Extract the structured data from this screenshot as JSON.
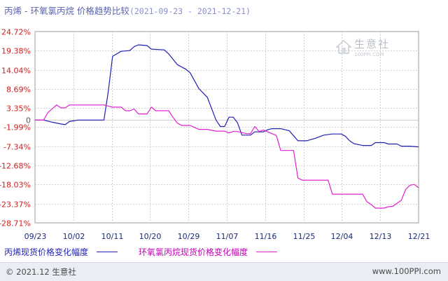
{
  "title": {
    "main": "丙烯 - 环氧氯丙烷 价格趋势比较",
    "range": "(2021-09-23 - 2021-12-21)"
  },
  "watermark": {
    "brand": "生意社",
    "url": "100PPI.COM"
  },
  "footer": {
    "left": "© 2021.12 生意社",
    "right": "www.100PPI.com"
  },
  "colors": {
    "series_a": "#1f1fb0",
    "series_b": "#e020d0",
    "positive_tick": "#cc2020",
    "negative_tick": "#cc2020",
    "grid": "#cfcfcf"
  },
  "chart_data": {
    "type": "line",
    "title": "丙烯 - 环氧氯丙烷 价格趋势比较",
    "x_tick_labels": [
      "09/23",
      "10/02",
      "10/11",
      "10/20",
      "10/29",
      "11/07",
      "11/16",
      "11/25",
      "12/04",
      "12/13",
      "12/21"
    ],
    "x_range": [
      "2021-09-23",
      "2021-12-21"
    ],
    "y_tick_labels": [
      "24.72%",
      "19.38%",
      "14.04%",
      "8.69%",
      "3.35%",
      "0",
      "-1.99%",
      "-7.34%",
      "-12.68%",
      "-18.03%",
      "-23.37%",
      "-28.71%"
    ],
    "y_ticks": [
      24.72,
      19.38,
      14.04,
      8.69,
      3.35,
      0,
      -1.99,
      -7.34,
      -12.68,
      -18.03,
      -23.37,
      -28.71
    ],
    "ylim": [
      -28.71,
      24.72
    ],
    "grid": true,
    "series": [
      {
        "name": "丙烯现货价格变化幅度",
        "points": [
          [
            "2021-09-23",
            0
          ],
          [
            "2021-09-25",
            0
          ],
          [
            "2021-09-27",
            -0.6
          ],
          [
            "2021-09-29",
            -1.1
          ],
          [
            "2021-09-30",
            -1.3
          ],
          [
            "2021-10-01",
            -0.4
          ],
          [
            "2021-10-03",
            0
          ],
          [
            "2021-10-05",
            0
          ],
          [
            "2021-10-07",
            0
          ],
          [
            "2021-10-09",
            0
          ],
          [
            "2021-10-10",
            8
          ],
          [
            "2021-10-11",
            17.8
          ],
          [
            "2021-10-13",
            19.2
          ],
          [
            "2021-10-15",
            19.4
          ],
          [
            "2021-10-16",
            20.5
          ],
          [
            "2021-10-17",
            21
          ],
          [
            "2021-10-19",
            20.8
          ],
          [
            "2021-10-20",
            19.8
          ],
          [
            "2021-10-23",
            19.6
          ],
          [
            "2021-10-24",
            18.5
          ],
          [
            "2021-10-26",
            15.5
          ],
          [
            "2021-10-28",
            14.2
          ],
          [
            "2021-10-29",
            13.2
          ],
          [
            "2021-10-31",
            8.8
          ],
          [
            "2021-11-02",
            6.3
          ],
          [
            "2021-11-04",
            0
          ],
          [
            "2021-11-05",
            -1.8
          ],
          [
            "2021-11-06",
            -1.8
          ],
          [
            "2021-11-07",
            0.8
          ],
          [
            "2021-11-08",
            0.8
          ],
          [
            "2021-11-09",
            -0.8
          ],
          [
            "2021-11-10",
            -4.2
          ],
          [
            "2021-11-12",
            -4.2
          ],
          [
            "2021-11-13",
            -3.3
          ],
          [
            "2021-11-15",
            -3.3
          ],
          [
            "2021-11-16",
            -2.7
          ],
          [
            "2021-11-17",
            -2.4
          ],
          [
            "2021-11-19",
            -2.4
          ],
          [
            "2021-11-21",
            -3
          ],
          [
            "2021-11-23",
            -5.8
          ],
          [
            "2021-11-25",
            -5.8
          ],
          [
            "2021-11-27",
            -5.1
          ],
          [
            "2021-11-29",
            -4.2
          ],
          [
            "2021-12-01",
            -3.9
          ],
          [
            "2021-12-03",
            -3.9
          ],
          [
            "2021-12-04",
            -4.5
          ],
          [
            "2021-12-05",
            -5.8
          ],
          [
            "2021-12-06",
            -6.6
          ],
          [
            "2021-12-08",
            -7.1
          ],
          [
            "2021-12-10",
            -7.1
          ],
          [
            "2021-12-11",
            -6.3
          ],
          [
            "2021-12-13",
            -6.3
          ],
          [
            "2021-12-14",
            -6.7
          ],
          [
            "2021-12-16",
            -6.7
          ],
          [
            "2021-12-17",
            -7.3
          ],
          [
            "2021-12-19",
            -7.3
          ],
          [
            "2021-12-21",
            -7.5
          ]
        ]
      },
      {
        "name": "环氧氯丙烷现货价格变化幅度",
        "points": [
          [
            "2021-09-23",
            0
          ],
          [
            "2021-09-25",
            0
          ],
          [
            "2021-09-26",
            2.1
          ],
          [
            "2021-09-28",
            4.2
          ],
          [
            "2021-09-29",
            3.4
          ],
          [
            "2021-09-30",
            3.4
          ],
          [
            "2021-10-01",
            4.2
          ],
          [
            "2021-10-03",
            4.2
          ],
          [
            "2021-10-05",
            4.2
          ],
          [
            "2021-10-07",
            4.2
          ],
          [
            "2021-10-09",
            4.2
          ],
          [
            "2021-10-11",
            3.6
          ],
          [
            "2021-10-13",
            3.6
          ],
          [
            "2021-10-14",
            2.6
          ],
          [
            "2021-10-15",
            2.6
          ],
          [
            "2021-10-16",
            3.1
          ],
          [
            "2021-10-17",
            1.7
          ],
          [
            "2021-10-19",
            1.7
          ],
          [
            "2021-10-20",
            3.6
          ],
          [
            "2021-10-21",
            2.6
          ],
          [
            "2021-10-23",
            2.6
          ],
          [
            "2021-10-24",
            2.6
          ],
          [
            "2021-10-25",
            0.8
          ],
          [
            "2021-10-26",
            -0.8
          ],
          [
            "2021-10-27",
            -1.5
          ],
          [
            "2021-10-29",
            -1.5
          ],
          [
            "2021-10-31",
            -2.6
          ],
          [
            "2021-11-02",
            -2.6
          ],
          [
            "2021-11-04",
            -3.1
          ],
          [
            "2021-11-06",
            -3.1
          ],
          [
            "2021-11-07",
            -3.6
          ],
          [
            "2021-11-08",
            -3.2
          ],
          [
            "2021-11-09",
            -3.2
          ],
          [
            "2021-11-11",
            -3.8
          ],
          [
            "2021-11-12",
            -3.8
          ],
          [
            "2021-11-13",
            -1.8
          ],
          [
            "2021-11-14",
            -3.2
          ],
          [
            "2021-11-15",
            -2.8
          ],
          [
            "2021-11-16",
            -3.3
          ],
          [
            "2021-11-18",
            -4.3
          ],
          [
            "2021-11-19",
            -8.5
          ],
          [
            "2021-11-20",
            -8.5
          ],
          [
            "2021-11-21",
            -8.5
          ],
          [
            "2021-11-22",
            -8.5
          ],
          [
            "2021-11-23",
            -16.2
          ],
          [
            "2021-11-24",
            -16.8
          ],
          [
            "2021-11-26",
            -16.8
          ],
          [
            "2021-11-28",
            -16.8
          ],
          [
            "2021-11-29",
            -16.8
          ],
          [
            "2021-11-30",
            -16.8
          ],
          [
            "2021-12-01",
            -20.7
          ],
          [
            "2021-12-03",
            -20.7
          ],
          [
            "2021-12-05",
            -20.7
          ],
          [
            "2021-12-07",
            -20.7
          ],
          [
            "2021-12-08",
            -20.7
          ],
          [
            "2021-12-09",
            -22.8
          ],
          [
            "2021-12-10",
            -23.6
          ],
          [
            "2021-12-11",
            -24.6
          ],
          [
            "2021-12-13",
            -24.6
          ],
          [
            "2021-12-14",
            -24.2
          ],
          [
            "2021-12-15",
            -24.1
          ],
          [
            "2021-12-17",
            -22.4
          ],
          [
            "2021-12-18",
            -19.4
          ],
          [
            "2021-12-19",
            -18.2
          ],
          [
            "2021-12-20",
            -18
          ],
          [
            "2021-12-21",
            -18.9
          ]
        ]
      }
    ]
  }
}
